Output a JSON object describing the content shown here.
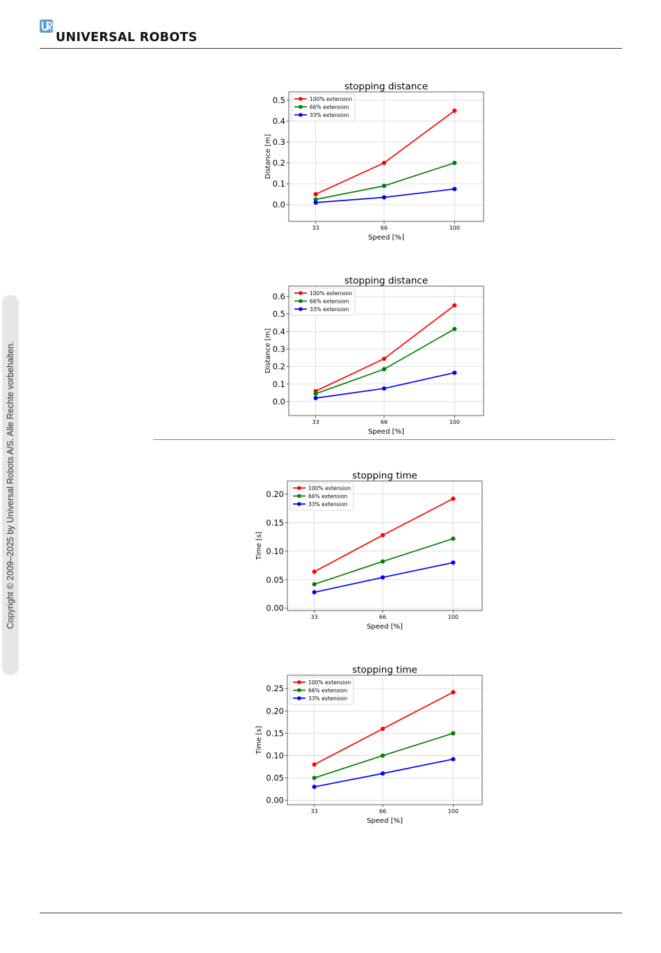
{
  "header": {
    "brand": "UNIVERSAL ROBOTS",
    "logo_icon": "ur-logo-icon"
  },
  "sidebar": {
    "copyright": "Copyright © 2009–2025 by Universal Robots A/S. Alle Rechte vorbehalten."
  },
  "colors": {
    "red": "#ff0000",
    "green": "#008000",
    "blue": "#0000ff",
    "separator": "#3b95d6"
  },
  "chart_data": [
    {
      "type": "line",
      "title": "stopping distance",
      "xlabel": "Speed [%]",
      "ylabel": "Distance [m]",
      "x": [
        33,
        66,
        100
      ],
      "xticks": [
        "33",
        "66",
        "100"
      ],
      "xlim": [
        20,
        114
      ],
      "ylim": [
        -0.08,
        0.54
      ],
      "yticks": [
        "0.0",
        "0.1",
        "0.2",
        "0.3",
        "0.4",
        "0.5"
      ],
      "yticks_values": [
        0,
        0.1,
        0.2,
        0.3,
        0.4,
        0.5
      ],
      "grid": true,
      "legend": "upper left",
      "series": [
        {
          "name": "100% extension",
          "color": "#ff0000",
          "values": [
            0.05,
            0.2,
            0.45
          ]
        },
        {
          "name": "66% extension",
          "color": "#008000",
          "values": [
            0.025,
            0.09,
            0.2
          ]
        },
        {
          "name": "33% extension",
          "color": "#0000ff",
          "values": [
            0.01,
            0.035,
            0.075
          ]
        }
      ]
    },
    {
      "type": "line",
      "title": "stopping distance",
      "xlabel": "Speed [%]",
      "ylabel": "Distance [m]",
      "x": [
        33,
        66,
        100
      ],
      "xticks": [
        "33",
        "66",
        "100"
      ],
      "xlim": [
        20,
        114
      ],
      "ylim": [
        -0.08,
        0.66
      ],
      "yticks": [
        "0.0",
        "0.1",
        "0.2",
        "0.3",
        "0.4",
        "0.5",
        "0.6"
      ],
      "yticks_values": [
        0,
        0.1,
        0.2,
        0.3,
        0.4,
        0.5,
        0.6
      ],
      "grid": true,
      "legend": "upper left",
      "series": [
        {
          "name": "100% extension",
          "color": "#ff0000",
          "values": [
            0.06,
            0.245,
            0.55
          ]
        },
        {
          "name": "66% extension",
          "color": "#008000",
          "values": [
            0.045,
            0.185,
            0.415
          ]
        },
        {
          "name": "33% extension",
          "color": "#0000ff",
          "values": [
            0.02,
            0.075,
            0.165
          ]
        }
      ]
    },
    {
      "type": "line",
      "title": "stopping time",
      "xlabel": "Speed [%]",
      "ylabel": "Time [s]",
      "x": [
        33,
        66,
        100
      ],
      "xticks": [
        "33",
        "66",
        "100"
      ],
      "xlim": [
        20,
        114
      ],
      "ylim": [
        -0.004,
        0.223
      ],
      "yticks": [
        "0.00",
        "0.05",
        "0.10",
        "0.15",
        "0.20"
      ],
      "yticks_values": [
        0,
        0.05,
        0.1,
        0.15,
        0.2
      ],
      "grid": true,
      "legend": "upper left",
      "series": [
        {
          "name": "100% extension",
          "color": "#ff0000",
          "values": [
            0.064,
            0.128,
            0.192
          ]
        },
        {
          "name": "66% extension",
          "color": "#008000",
          "values": [
            0.042,
            0.082,
            0.122
          ]
        },
        {
          "name": "33% extension",
          "color": "#0000ff",
          "values": [
            0.028,
            0.054,
            0.08
          ]
        }
      ]
    },
    {
      "type": "line",
      "title": "stopping time",
      "xlabel": "Speed [%]",
      "ylabel": "Time [s]",
      "x": [
        33,
        66,
        100
      ],
      "xticks": [
        "33",
        "66",
        "100"
      ],
      "xlim": [
        20,
        114
      ],
      "ylim": [
        -0.01,
        0.28
      ],
      "yticks": [
        "0.00",
        "0.05",
        "0.10",
        "0.15",
        "0.20",
        "0.25"
      ],
      "yticks_values": [
        0,
        0.05,
        0.1,
        0.15,
        0.2,
        0.25
      ],
      "grid": true,
      "legend": "upper left",
      "series": [
        {
          "name": "100% extension",
          "color": "#ff0000",
          "values": [
            0.08,
            0.16,
            0.242
          ]
        },
        {
          "name": "66% extension",
          "color": "#008000",
          "values": [
            0.05,
            0.1,
            0.15
          ]
        },
        {
          "name": "33% extension",
          "color": "#0000ff",
          "values": [
            0.03,
            0.06,
            0.092
          ]
        }
      ]
    }
  ]
}
